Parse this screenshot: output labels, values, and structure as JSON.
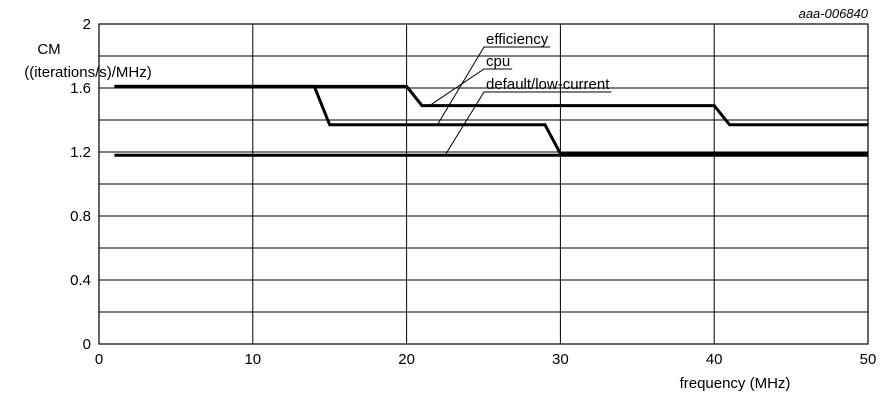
{
  "chart_data": {
    "type": "line",
    "title": "",
    "reference_id": "aaa-006840",
    "ylabel_lines": [
      "CM",
      "((iterations/s)/MHz)"
    ],
    "xlabel": "frequency (MHz)",
    "xlim": [
      0,
      50
    ],
    "ylim": [
      0,
      2
    ],
    "x_ticks": [
      0,
      10,
      20,
      30,
      40,
      50
    ],
    "x_tick_labels": [
      "0",
      "10",
      "20",
      "30",
      "40",
      "50"
    ],
    "y_ticks": [
      0,
      0.4,
      0.8,
      1.2,
      1.6,
      2
    ],
    "y_tick_labels": [
      "0",
      "0.4",
      "0.8",
      "1.2",
      "1.6",
      "2"
    ],
    "grid": true,
    "series": [
      {
        "name": "efficiency",
        "points": [
          [
            1,
            1.61
          ],
          [
            20,
            1.61
          ],
          [
            21,
            1.49
          ],
          [
            40,
            1.49
          ],
          [
            41,
            1.37
          ],
          [
            50,
            1.37
          ]
        ],
        "label_anchor": [
          22,
          1.37
        ]
      },
      {
        "name": "cpu",
        "points": [
          [
            1,
            1.61
          ],
          [
            14,
            1.61
          ],
          [
            15,
            1.37
          ],
          [
            29,
            1.37
          ],
          [
            30,
            1.19
          ],
          [
            50,
            1.19
          ]
        ],
        "label_anchor": [
          21.5,
          1.49
        ]
      },
      {
        "name": "default/low-current",
        "points": [
          [
            1,
            1.18
          ],
          [
            50,
            1.18
          ]
        ],
        "label_anchor": [
          22.5,
          1.18
        ]
      }
    ]
  }
}
